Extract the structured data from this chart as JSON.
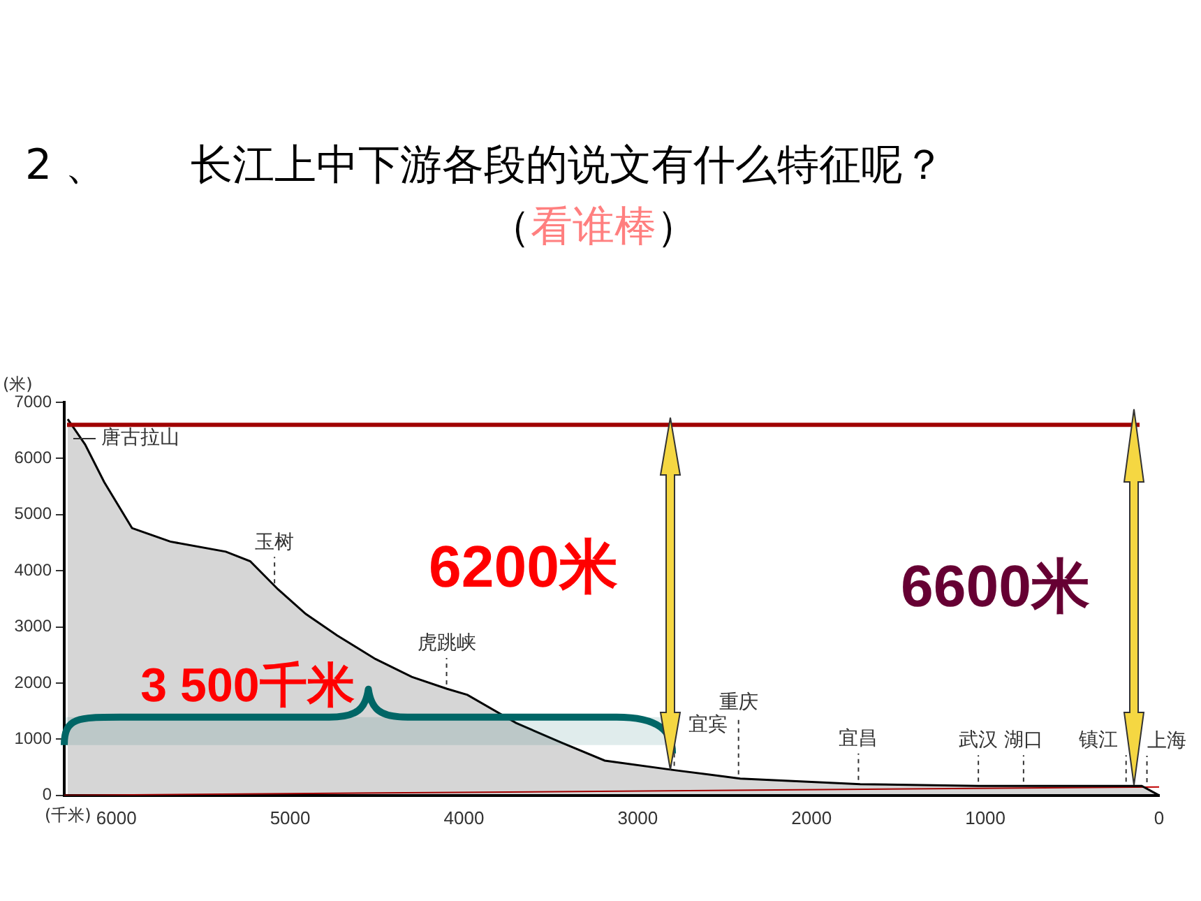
{
  "chart_data": {
    "type": "area",
    "title": "2 、　　长江上中下游各段的说文有什么特征呢？",
    "subtitle": "（看谁棒）",
    "xlabel": "(千米)",
    "ylabel": "(米)",
    "xlim": [
      6300,
      0
    ],
    "xticks": [
      6000,
      5000,
      4000,
      3000,
      2000,
      1000,
      0
    ],
    "ylim": [
      0,
      7000
    ],
    "yticks": [
      0,
      1000,
      2000,
      3000,
      4000,
      5000,
      6000,
      7000
    ],
    "grid": false,
    "legend": false,
    "series": [
      {
        "type": "area",
        "color": "#000000",
        "x": [
          6280,
          6180,
          6070,
          5910,
          5690,
          5370,
          5230,
          5070,
          4910,
          4730,
          4510,
          4300,
          4100,
          3980,
          3700,
          3440,
          3190,
          2790,
          2410,
          1720,
          1040,
          100,
          0
        ],
        "values": [
          6700,
          6250,
          5580,
          4760,
          4520,
          4340,
          4170,
          3670,
          3230,
          2850,
          2430,
          2110,
          1900,
          1790,
          1290,
          940,
          620,
          450,
          300,
          200,
          170,
          170,
          0
        ]
      },
      {
        "type": "line",
        "color": "#c00000",
        "x": [
          6300,
          0
        ],
        "values": [
          0,
          150
        ]
      }
    ],
    "ref_lines": [
      {
        "axis": "y",
        "value": 6600,
        "color": "#a00000"
      }
    ],
    "bands": [
      {
        "axis": "x",
        "from": 6300,
        "to": 2800,
        "label": "3 500千米",
        "color": "#006666"
      }
    ],
    "annotations": [
      {
        "text": "唐古拉山",
        "x": 6280,
        "y": 6700
      },
      {
        "text": "玉树",
        "x": 5090,
        "y": 3700
      },
      {
        "text": "虎跳峡",
        "x": 4100,
        "y": 1900
      },
      {
        "text": "宜宾",
        "x": 2790,
        "y": 450
      },
      {
        "text": "重庆",
        "x": 2420,
        "y": 300
      },
      {
        "text": "宜昌",
        "x": 1730,
        "y": 200
      },
      {
        "text": "武汉",
        "x": 1040,
        "y": 170
      },
      {
        "text": "湖口",
        "x": 780,
        "y": 170
      },
      {
        "text": "镇江",
        "x": 190,
        "y": 170
      },
      {
        "text": "上海",
        "x": 70,
        "y": 160
      },
      "6200米",
      "6600米"
    ]
  }
}
